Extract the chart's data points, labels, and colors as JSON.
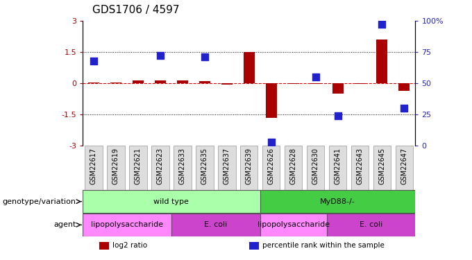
{
  "title": "GDS1706 / 4597",
  "samples": [
    "GSM22617",
    "GSM22619",
    "GSM22621",
    "GSM22623",
    "GSM22633",
    "GSM22635",
    "GSM22637",
    "GSM22639",
    "GSM22626",
    "GSM22628",
    "GSM22630",
    "GSM22641",
    "GSM22643",
    "GSM22645",
    "GSM22647"
  ],
  "log2_ratio": [
    0.05,
    0.02,
    0.15,
    0.12,
    0.12,
    0.1,
    -0.05,
    1.5,
    -1.65,
    -0.02,
    -0.02,
    -0.5,
    -0.02,
    2.1,
    -0.35
  ],
  "percentile": [
    68,
    -999,
    -999,
    72,
    -999,
    71,
    -999,
    -999,
    3,
    -999,
    55,
    24,
    -999,
    97,
    30
  ],
  "ylim": [
    -3,
    3
  ],
  "yticks_left": [
    -3,
    -1.5,
    0,
    1.5,
    3
  ],
  "yticks_right": [
    0,
    25,
    50,
    75,
    100
  ],
  "hlines_dotted": [
    -1.5,
    1.5
  ],
  "bar_color": "#aa0000",
  "dot_color": "#2222cc",
  "zero_line_color": "#dd0000",
  "genotype_labels": [
    {
      "label": "wild type",
      "start": 0,
      "end": 8,
      "color": "#aaffaa"
    },
    {
      "label": "MyD88-/-",
      "start": 8,
      "end": 15,
      "color": "#44cc44"
    }
  ],
  "agent_labels": [
    {
      "label": "lipopolysaccharide",
      "start": 0,
      "end": 4,
      "color": "#ff88ff"
    },
    {
      "label": "E. coli",
      "start": 4,
      "end": 8,
      "color": "#cc44cc"
    },
    {
      "label": "lipopolysaccharide",
      "start": 8,
      "end": 11,
      "color": "#ff88ff"
    },
    {
      "label": "E. coli",
      "start": 11,
      "end": 15,
      "color": "#cc44cc"
    }
  ],
  "legend_items": [
    {
      "label": "log2 ratio",
      "color": "#aa0000"
    },
    {
      "label": "percentile rank within the sample",
      "color": "#2222cc"
    }
  ],
  "row_label_genotype": "genotype/variation",
  "row_label_agent": "agent",
  "bar_width": 0.5,
  "dot_size": 55,
  "title_fontsize": 11,
  "tick_fontsize": 8,
  "sample_fontsize": 7,
  "row_label_fontsize": 8,
  "annot_fontsize": 8
}
